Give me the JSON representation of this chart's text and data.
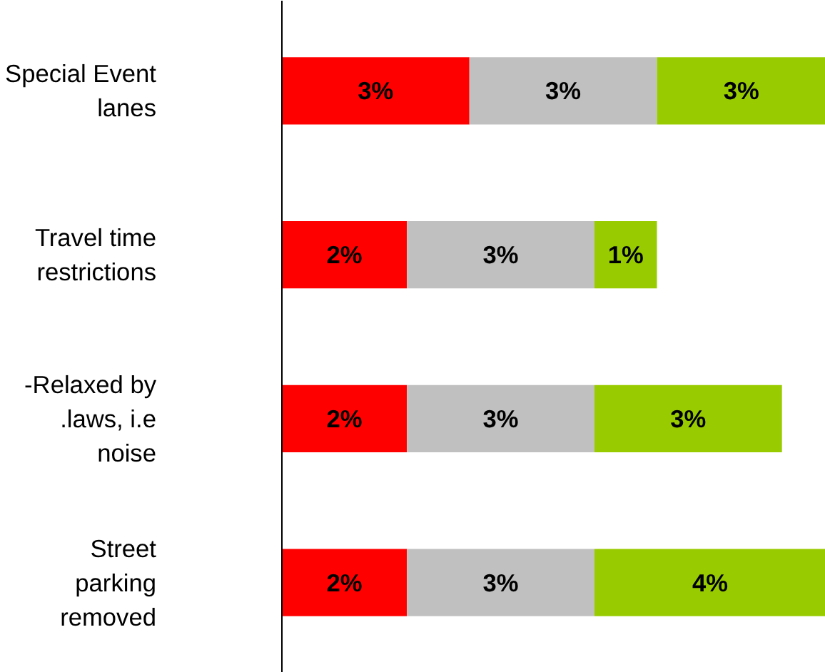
{
  "chart_data": {
    "type": "bar",
    "orientation": "horizontal",
    "stacked": true,
    "categories": [
      "Special Event\nlanes",
      "Travel time\nrestrictions",
      "-Relaxed by\n.laws, i.e\nnoise",
      "Street\nparking\nremoved"
    ],
    "series": [
      {
        "color": "#ff0000",
        "values": [
          3.0,
          2.0,
          2.0,
          2.0
        ],
        "value_labels": [
          "3%",
          "2%",
          "2%",
          "2%"
        ]
      },
      {
        "color": "#c0c0c0",
        "values": [
          3.0,
          3.0,
          3.0,
          3.0
        ],
        "value_labels": [
          "3%",
          "3%",
          "3%",
          "3%"
        ]
      },
      {
        "color": "#99cc00",
        "values": [
          2.7,
          1.0,
          3.0,
          3.7
        ],
        "value_labels": [
          "3%",
          "1%",
          "3%",
          "4%"
        ]
      }
    ],
    "grid": false,
    "tick_labels": "y"
  }
}
